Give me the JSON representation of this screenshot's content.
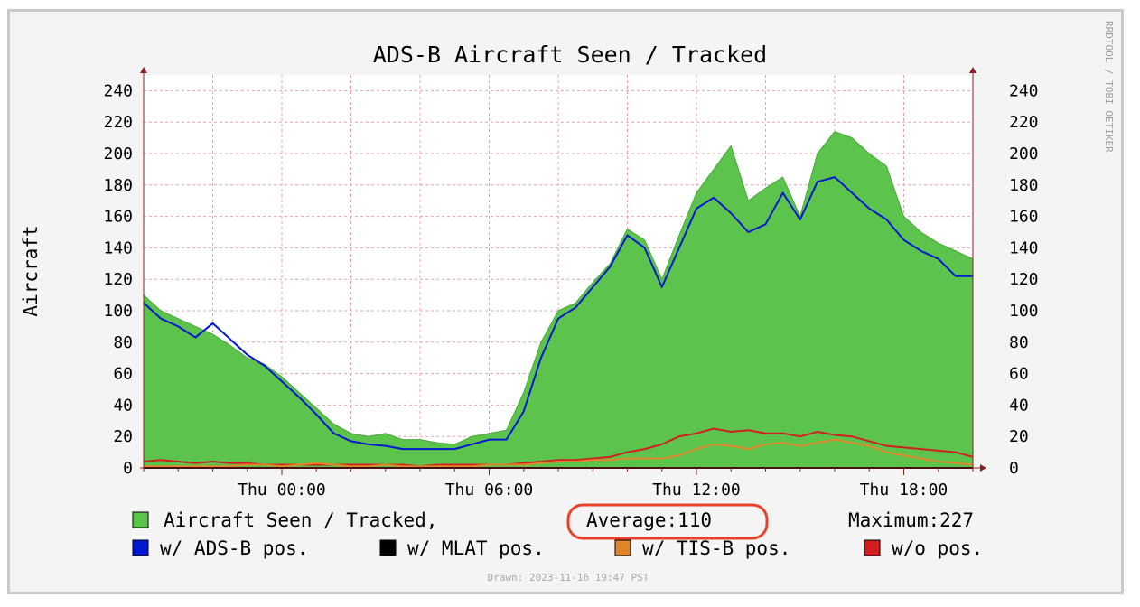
{
  "chart_data": {
    "type": "area",
    "title": "ADS-B Aircraft Seen / Tracked",
    "ylabel": "Aircraft",
    "ylim": [
      0,
      250
    ],
    "yticks": [
      0,
      20,
      40,
      60,
      80,
      100,
      120,
      140,
      160,
      180,
      200,
      220,
      240
    ],
    "xlim": [
      -4,
      20
    ],
    "x_unit": "hour",
    "xticks": [
      {
        "x": 0,
        "label": "Thu 00:00"
      },
      {
        "x": 6,
        "label": "Thu 06:00"
      },
      {
        "x": 12,
        "label": "Thu 12:00"
      },
      {
        "x": 18,
        "label": "Thu 18:00"
      }
    ],
    "grid": true,
    "x": [
      -4,
      -3.5,
      -3,
      -2.5,
      -2,
      -1.5,
      -1,
      -0.5,
      0,
      0.5,
      1,
      1.5,
      2,
      2.5,
      3,
      3.5,
      4,
      4.5,
      5,
      5.5,
      6,
      6.5,
      7,
      7.5,
      8,
      8.5,
      9,
      9.5,
      10,
      10.5,
      11,
      11.5,
      12,
      12.5,
      13,
      13.5,
      14,
      14.5,
      15,
      15.5,
      16,
      16.5,
      17,
      17.5,
      18,
      18.5,
      19,
      19.5,
      20
    ],
    "series": [
      {
        "name": "Aircraft Seen / Tracked,",
        "color": "#5cc44c",
        "values": [
          110,
          100,
          95,
          90,
          85,
          78,
          70,
          66,
          58,
          48,
          38,
          28,
          22,
          20,
          22,
          18,
          18,
          16,
          15,
          20,
          22,
          24,
          48,
          80,
          100,
          105,
          118,
          130,
          152,
          145,
          120,
          148,
          175,
          190,
          205,
          170,
          178,
          185,
          160,
          200,
          214,
          210,
          200,
          192,
          160,
          150,
          143,
          138,
          133
        ]
      },
      {
        "name": "w/ ADS-B pos.",
        "color": "#0018d0",
        "values": [
          105,
          95,
          90,
          83,
          92,
          82,
          72,
          65,
          55,
          45,
          34,
          22,
          17,
          15,
          14,
          12,
          12,
          12,
          12,
          15,
          18,
          18,
          36,
          70,
          95,
          102,
          115,
          128,
          148,
          140,
          115,
          140,
          165,
          172,
          162,
          150,
          155,
          175,
          158,
          182,
          185,
          175,
          165,
          158,
          145,
          138,
          133,
          122,
          122
        ]
      },
      {
        "name": "w/ MLAT pos.",
        "color": "#000000",
        "values": [
          0,
          0,
          0,
          0,
          0,
          0,
          0,
          0,
          0,
          0,
          0,
          0,
          0,
          0,
          0,
          0,
          0,
          0,
          0,
          0,
          0,
          0,
          0,
          0,
          0,
          0,
          0,
          0,
          0,
          0,
          0,
          0,
          0,
          0,
          0,
          0,
          0,
          0,
          0,
          0,
          0,
          0,
          0,
          0,
          0,
          0,
          0,
          0,
          0
        ]
      },
      {
        "name": "w/ TIS-B pos.",
        "color": "#e0862a",
        "values": [
          1,
          1,
          1,
          1,
          1,
          1,
          2,
          2,
          1,
          2,
          3,
          2,
          1,
          1,
          2,
          1,
          1,
          1,
          1,
          1,
          2,
          2,
          2,
          3,
          4,
          4,
          5,
          5,
          6,
          6,
          6,
          8,
          12,
          15,
          14,
          12,
          15,
          16,
          14,
          16,
          18,
          16,
          14,
          10,
          8,
          6,
          4,
          3,
          2
        ]
      },
      {
        "name": "w/o pos.",
        "color": "#d02020",
        "values": [
          4,
          5,
          4,
          3,
          4,
          3,
          3,
          2,
          2,
          2,
          2,
          2,
          2,
          2,
          2,
          2,
          1,
          2,
          2,
          2,
          2,
          2,
          3,
          4,
          5,
          5,
          6,
          7,
          10,
          12,
          15,
          20,
          22,
          25,
          23,
          24,
          22,
          22,
          20,
          23,
          21,
          20,
          17,
          14,
          13,
          12,
          11,
          10,
          7
        ]
      }
    ],
    "legend": [
      {
        "label": "Aircraft Seen / Tracked,",
        "color": "#5cc44c"
      },
      {
        "label": "w/ ADS-B pos.",
        "color": "#0018d0"
      },
      {
        "label": "w/ MLAT pos.",
        "color": "#000000"
      },
      {
        "label": "w/ TIS-B pos.",
        "color": "#e0862a"
      },
      {
        "label": "w/o pos.",
        "color": "#d02020"
      }
    ],
    "stats": {
      "average": "Average:110",
      "maximum": "Maximum:227"
    },
    "footer": "Drawn: 2023-11-16 19:47 PST",
    "watermark": "RRDTOOL / TOBI OETIKER",
    "highlight_color": "#e8432a",
    "grid_color": "#f0a0a0",
    "axis_color": "#8a2020"
  }
}
